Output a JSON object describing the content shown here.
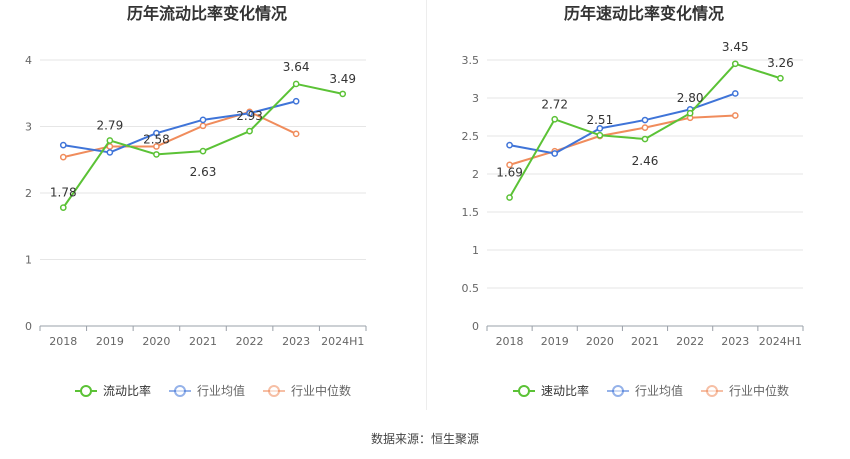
{
  "footer": {
    "source_text": "数据来源：恒生聚源"
  },
  "chart_data": [
    {
      "type": "line",
      "title": "历年流动比率变化情况",
      "categories": [
        "2018",
        "2019",
        "2020",
        "2021",
        "2022",
        "2023",
        "2024H1"
      ],
      "ylim": [
        0,
        4
      ],
      "yticks": [
        0,
        1,
        2,
        3,
        4
      ],
      "ytick_labels": [
        "0",
        "1",
        "2",
        "3",
        "4"
      ],
      "grid": true,
      "legend_position": "bottom",
      "series": [
        {
          "name": "流动比率",
          "color": "#5bc236",
          "values": [
            1.78,
            2.79,
            2.58,
            2.63,
            2.93,
            3.64,
            3.49
          ],
          "labels": [
            "1.78",
            "2.79",
            "2.58",
            "2.63",
            "2.93",
            "3.64",
            "3.49"
          ]
        },
        {
          "name": "行业均值",
          "color": "#3f74d8",
          "values": [
            2.72,
            2.61,
            2.9,
            3.1,
            3.2,
            3.38,
            null
          ]
        },
        {
          "name": "行业中位数",
          "color": "#f08c5c",
          "values": [
            2.54,
            2.7,
            2.7,
            3.01,
            3.22,
            2.89,
            null
          ]
        }
      ]
    },
    {
      "type": "line",
      "title": "历年速动比率变化情况",
      "categories": [
        "2018",
        "2019",
        "2020",
        "2021",
        "2022",
        "2023",
        "2024H1"
      ],
      "ylim": [
        0,
        3.5
      ],
      "yticks": [
        0,
        0.5,
        1,
        1.5,
        2,
        2.5,
        3,
        3.5
      ],
      "ytick_labels": [
        "0",
        "0.5",
        "1",
        "1.5",
        "2",
        "2.5",
        "3",
        "3.5"
      ],
      "grid": true,
      "legend_position": "bottom",
      "series": [
        {
          "name": "速动比率",
          "color": "#5bc236",
          "values": [
            1.69,
            2.72,
            2.51,
            2.46,
            2.8,
            3.45,
            3.26
          ],
          "labels": [
            "1.69",
            "2.72",
            "2.51",
            "2.46",
            "2.80",
            "3.45",
            "3.26"
          ]
        },
        {
          "name": "行业均值",
          "color": "#3f74d8",
          "values": [
            2.38,
            2.27,
            2.6,
            2.71,
            2.85,
            3.06,
            null
          ]
        },
        {
          "name": "行业中位数",
          "color": "#f08c5c",
          "values": [
            2.12,
            2.3,
            2.5,
            2.61,
            2.74,
            2.77,
            null
          ]
        }
      ]
    }
  ]
}
